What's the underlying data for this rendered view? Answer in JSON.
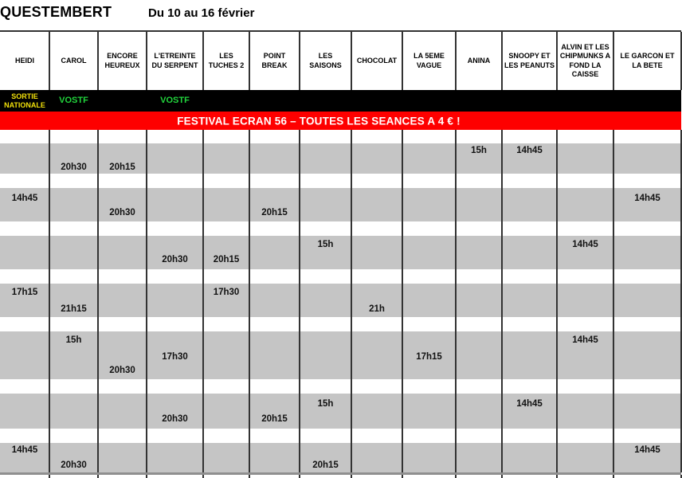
{
  "page": {
    "title": "QUESTEMBERT",
    "date_range": "Du 10 au 16 février"
  },
  "banner": {
    "text": "FESTIVAL ECRAN 56 – TOUTES LES SEANCES A 4 € !"
  },
  "films": [
    "HEIDI",
    "CAROL",
    "ENCORE HEUREUX",
    "L'ETREINTE DU SERPENT",
    "LES TUCHES 2",
    "POINT BREAK",
    "LES SAISONS",
    "CHOCOLAT",
    "LA 5EME VAGUE",
    "ANINA",
    "SNOOPY ET LES PEANUTS",
    "ALVIN ET LES CHIPMUNKS A FOND LA CAISSE",
    "LE GARCON ET LA BETE"
  ],
  "release_tags": [
    {
      "film": 0,
      "label": "SORTIE NATIONALE",
      "style": "national-release"
    },
    {
      "film": 1,
      "label": "VOSTF",
      "style": "vostf"
    },
    {
      "film": 3,
      "label": "VOSTF",
      "style": "vostf"
    }
  ],
  "days": [
    {
      "showtimes": [
        {
          "film": 9,
          "line": 0,
          "time": "15h"
        },
        {
          "film": 10,
          "line": 0,
          "time": "14h45"
        },
        {
          "film": 1,
          "line": 1,
          "time": "20h30"
        },
        {
          "film": 2,
          "line": 1,
          "time": "20h15"
        }
      ]
    },
    {
      "showtimes": [
        {
          "film": 0,
          "line": 0,
          "time": "14h45"
        },
        {
          "film": 12,
          "line": 0,
          "time": "14h45"
        },
        {
          "film": 2,
          "line": 1,
          "time": "20h30"
        },
        {
          "film": 5,
          "line": 1,
          "time": "20h15"
        }
      ]
    },
    {
      "showtimes": [
        {
          "film": 6,
          "line": 0,
          "time": "15h"
        },
        {
          "film": 11,
          "line": 0,
          "time": "14h45"
        },
        {
          "film": 3,
          "line": 1,
          "time": "20h30"
        },
        {
          "film": 4,
          "line": 1,
          "time": "20h15"
        }
      ]
    },
    {
      "showtimes": [
        {
          "film": 0,
          "line": 0,
          "time": "17h15"
        },
        {
          "film": 4,
          "line": 0,
          "time": "17h30"
        },
        {
          "film": 1,
          "line": 1,
          "time": "21h15"
        },
        {
          "film": 7,
          "line": 1,
          "time": "21h"
        }
      ]
    },
    {
      "showtimes": [
        {
          "film": 1,
          "line": 0,
          "time": "15h"
        },
        {
          "film": 11,
          "line": 0,
          "time": "14h45"
        },
        {
          "film": 3,
          "line": 1,
          "time": "17h30"
        },
        {
          "film": 8,
          "line": 1,
          "time": "17h15"
        },
        {
          "film": 2,
          "line": 2,
          "time": "20h30"
        }
      ]
    },
    {
      "showtimes": [
        {
          "film": 6,
          "line": 0,
          "time": "15h"
        },
        {
          "film": 10,
          "line": 0,
          "time": "14h45"
        },
        {
          "film": 3,
          "line": 1,
          "time": "20h30"
        },
        {
          "film": 5,
          "line": 1,
          "time": "20h15"
        }
      ]
    },
    {
      "showtimes": [
        {
          "film": 0,
          "line": 0,
          "time": "14h45"
        },
        {
          "film": 12,
          "line": 0,
          "time": "14h45"
        },
        {
          "film": 1,
          "line": 1,
          "time": "20h30"
        },
        {
          "film": 6,
          "line": 1,
          "time": "20h15"
        }
      ]
    }
  ],
  "colors": {
    "banner_bg": "#fe0000",
    "banner_fg": "#ffffff",
    "black_strip": "#000000",
    "tag_yellow": "#f2e10a",
    "tag_green": "#21d43c",
    "day_band_gray": "#c5c5c5",
    "grid_line": "#333333",
    "bottom_divider": "#8f8f8f"
  }
}
